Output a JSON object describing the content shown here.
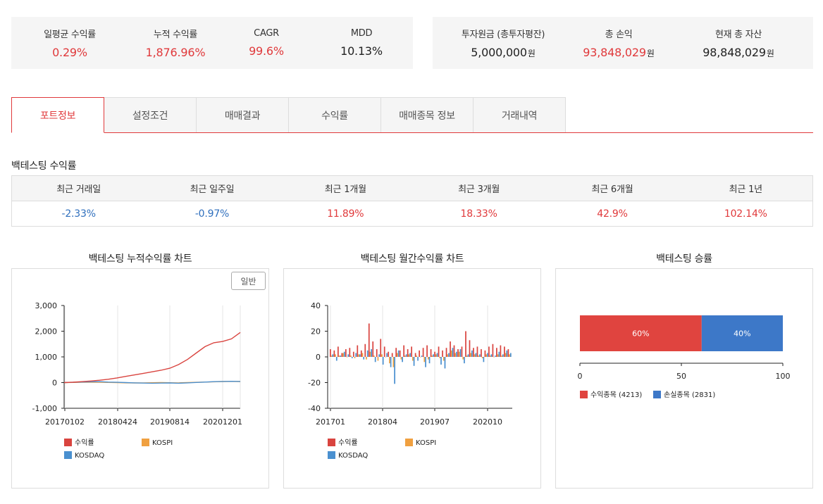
{
  "summary_left": [
    {
      "label": "일평균 수익률",
      "value": "0.29%",
      "color": "red"
    },
    {
      "label": "누적 수익률",
      "value": "1,876.96%",
      "color": "red"
    },
    {
      "label": "CAGR",
      "value": "99.6%",
      "color": "red"
    },
    {
      "label": "MDD",
      "value": "10.13%",
      "color": "black"
    }
  ],
  "summary_right": [
    {
      "label": "투자원금 (총투자평잔)",
      "value": "5,000,000",
      "unit": "원",
      "color": "black"
    },
    {
      "label": "총 손익",
      "value": "93,848,029",
      "unit": "원",
      "color": "red"
    },
    {
      "label": "현재 총 자산",
      "value": "98,848,029",
      "unit": "원",
      "color": "black"
    }
  ],
  "tabs": [
    {
      "label": "포트정보",
      "active": true
    },
    {
      "label": "설정조건",
      "active": false
    },
    {
      "label": "매매결과",
      "active": false
    },
    {
      "label": "수익률",
      "active": false
    },
    {
      "label": "매매종목 정보",
      "active": false
    },
    {
      "label": "거래내역",
      "active": false
    }
  ],
  "returns_section": {
    "title": "백테스팅 수익률",
    "headers": [
      "최근 거래일",
      "최근 일주일",
      "최근 1개월",
      "최근 3개월",
      "최근 6개월",
      "최근 1년"
    ],
    "values": [
      {
        "value": "-2.33%",
        "color": "blue"
      },
      {
        "value": "-0.97%",
        "color": "blue"
      },
      {
        "value": "11.89%",
        "color": "red"
      },
      {
        "value": "18.33%",
        "color": "red"
      },
      {
        "value": "42.9%",
        "color": "red"
      },
      {
        "value": "102.14%",
        "color": "red"
      }
    ]
  },
  "colors": {
    "profit": "#d9443f",
    "kospi": "#f0a040",
    "kosdaq": "#4a90d0",
    "win": "#e0443f",
    "loss": "#3d78c8",
    "accent": "#e0393b"
  },
  "cumulative_panel": {
    "title": "백테스팅 누적수익률 차트",
    "mode_button": "일반"
  },
  "monthly_panel": {
    "title": "백테스팅 월간수익률 차트"
  },
  "winrate_panel": {
    "title": "백테스팅 승률"
  },
  "chart_data": [
    {
      "type": "line",
      "title": "백테스팅 누적수익률 차트",
      "y_ticks": [
        "3,000",
        "2,000",
        "1,000",
        "0",
        "-1,000"
      ],
      "ylim": [
        -1000,
        3000
      ],
      "x_ticks": [
        "20170102",
        "20180424",
        "20190814",
        "20201201"
      ],
      "grid": true,
      "legend": [
        "수익률",
        "KOSPI",
        "KOSDAQ"
      ],
      "legend_position": "bottom",
      "series": [
        {
          "name": "수익률",
          "values": [
            0,
            15,
            35,
            60,
            90,
            130,
            180,
            240,
            300,
            360,
            420,
            480,
            560,
            700,
            900,
            1150,
            1400,
            1550,
            1600,
            1700,
            1950
          ]
        },
        {
          "name": "KOSPI",
          "values": [
            0,
            5,
            10,
            15,
            10,
            5,
            0,
            -10,
            -15,
            -10,
            -5,
            0,
            -5,
            -10,
            0,
            10,
            20,
            30,
            40,
            45,
            40
          ]
        },
        {
          "name": "KOSDAQ",
          "values": [
            0,
            10,
            20,
            30,
            35,
            20,
            10,
            0,
            -10,
            -20,
            -25,
            -20,
            -15,
            -25,
            -10,
            5,
            20,
            35,
            45,
            50,
            45
          ]
        }
      ]
    },
    {
      "type": "bar",
      "title": "백테스팅 월간수익률 차트",
      "y_ticks": [
        "40",
        "20",
        "0",
        "-20",
        "-40"
      ],
      "ylim": [
        -40,
        40
      ],
      "x_ticks": [
        "201701",
        "201804",
        "201907",
        "202010"
      ],
      "grid": true,
      "legend": [
        "수익률",
        "KOSPI",
        "KOSDAQ"
      ],
      "legend_position": "bottom",
      "series": [
        {
          "name": "수익률",
          "values": [
            6,
            5,
            8,
            3,
            6,
            7,
            4,
            9,
            5,
            10,
            26,
            12,
            6,
            14,
            8,
            4,
            3,
            7,
            5,
            9,
            6,
            8,
            3,
            5,
            7,
            9,
            6,
            4,
            8,
            5,
            7,
            12,
            9,
            6,
            8,
            20,
            13,
            7,
            8,
            6,
            5,
            8,
            10,
            7,
            9,
            8,
            6
          ]
        },
        {
          "name": "KOSPI",
          "values": [
            1,
            2,
            1,
            3,
            0,
            1,
            -1,
            2,
            3,
            -2,
            4,
            1,
            -3,
            2,
            0,
            -5,
            -8,
            3,
            -2,
            1,
            2,
            -3,
            1,
            0,
            -4,
            -2,
            1,
            2,
            -1,
            -3,
            2,
            5,
            3,
            4,
            -2,
            1,
            3,
            2,
            1,
            -1,
            2,
            1,
            0,
            2,
            1,
            3,
            2
          ]
        },
        {
          "name": "KOSDAQ",
          "values": [
            2,
            -3,
            1,
            4,
            2,
            -1,
            3,
            2,
            -2,
            5,
            6,
            -4,
            2,
            -6,
            3,
            -8,
            -21,
            5,
            -4,
            2,
            3,
            -7,
            -3,
            1,
            -8,
            -5,
            2,
            3,
            -6,
            -9,
            3,
            7,
            4,
            6,
            -5,
            2,
            5,
            3,
            2,
            -4,
            3,
            2,
            1,
            4,
            2,
            5,
            3
          ]
        }
      ]
    },
    {
      "type": "bar",
      "orientation": "horizontal-stacked",
      "title": "백테스팅 승률",
      "x_ticks": [
        "0",
        "50",
        "100"
      ],
      "xlim": [
        0,
        100
      ],
      "legend": [
        "수익종목 (4213)",
        "손실종목 (2831)"
      ],
      "legend_position": "bottom-left",
      "series": [
        {
          "name": "수익종목 (4213)",
          "values": [
            60
          ],
          "label": "60%"
        },
        {
          "name": "손실종목 (2831)",
          "values": [
            40
          ],
          "label": "40%"
        }
      ]
    }
  ]
}
